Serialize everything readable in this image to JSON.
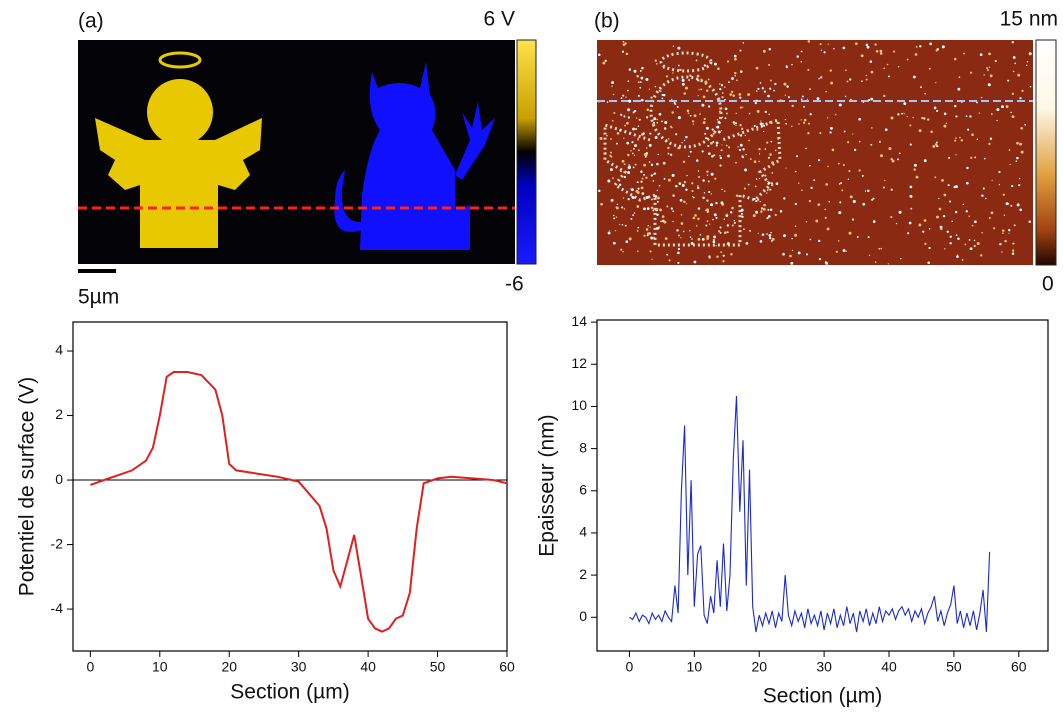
{
  "images": [
    {
      "label": "(a)",
      "colorbar_max": "6 V",
      "colorbar_min": "-6",
      "scalebar": "5µm"
    },
    {
      "label": "(b)",
      "colorbar_max": "15 nm",
      "colorbar_min": "0"
    }
  ],
  "chart_data": [
    {
      "type": "line",
      "xlabel": "Section (µm)",
      "ylabel": "Potentiel de surface (V)",
      "color": "#e02020",
      "xlim": [
        -2.5,
        60
      ],
      "ylim": [
        -5.3,
        4.9
      ],
      "xticks": [
        0,
        10,
        20,
        30,
        40,
        50,
        60
      ],
      "yticks": [
        -4,
        -2,
        0,
        2,
        4
      ],
      "x": [
        0,
        2,
        4,
        6,
        8,
        9,
        10,
        11,
        12,
        14,
        16,
        18,
        19,
        20,
        21,
        24,
        27,
        29,
        30,
        31,
        33,
        34,
        35,
        36,
        37,
        38,
        39,
        40,
        41,
        42,
        43,
        44,
        45,
        46,
        47,
        48,
        50,
        52,
        55,
        58,
        60
      ],
      "values": [
        -0.15,
        0,
        0.15,
        0.3,
        0.6,
        1,
        2,
        3.2,
        3.35,
        3.35,
        3.25,
        2.8,
        2,
        0.5,
        0.3,
        0.2,
        0.1,
        0,
        -0.05,
        -0.3,
        -0.8,
        -1.5,
        -2.8,
        -3.3,
        -2.5,
        -1.7,
        -3,
        -4.3,
        -4.6,
        -4.7,
        -4.6,
        -4.3,
        -4.2,
        -3.5,
        -1.5,
        -0.1,
        0.05,
        0.1,
        0.05,
        0,
        -0.1
      ]
    },
    {
      "type": "line",
      "xlabel": "Section (µm)",
      "ylabel": "Epaisseur (nm)",
      "color": "#1a2ad0",
      "xlim": [
        -5,
        64.5
      ],
      "ylim": [
        -1.6,
        14.1
      ],
      "xticks": [
        0,
        10,
        20,
        30,
        40,
        50,
        60
      ],
      "yticks": [
        0,
        2,
        4,
        6,
        8,
        10,
        12,
        14
      ],
      "x": [
        0,
        0.5,
        1,
        1.5,
        2,
        2.5,
        3,
        3.5,
        4,
        4.5,
        5,
        5.5,
        6,
        6.5,
        7,
        7.5,
        8,
        8.5,
        9,
        9.5,
        10,
        10.5,
        11,
        11.5,
        12,
        12.5,
        13,
        13.5,
        14,
        14.5,
        15,
        15.5,
        16,
        16.5,
        17,
        17.5,
        18,
        18.5,
        19,
        19.5,
        20,
        20.5,
        21,
        21.5,
        22,
        22.5,
        23,
        23.5,
        24,
        24.5,
        25,
        25.5,
        26,
        26.5,
        27,
        27.5,
        28,
        28.5,
        29,
        29.5,
        30,
        30.5,
        31,
        31.5,
        32,
        32.5,
        33,
        33.5,
        34,
        34.5,
        35,
        35.5,
        36,
        36.5,
        37,
        37.5,
        38,
        38.5,
        39,
        39.5,
        40,
        40.5,
        41,
        41.5,
        42,
        42.5,
        43,
        43.5,
        44,
        44.5,
        45,
        45.5,
        46,
        46.5,
        47,
        47.5,
        48,
        48.5,
        49,
        49.5,
        50,
        50.5,
        51,
        51.5,
        52,
        52.5,
        53,
        53.5,
        54,
        54.5,
        55,
        55.5
      ],
      "values": [
        0,
        -0.1,
        0.2,
        -0.2,
        0.1,
        0,
        -0.3,
        0.2,
        -0.1,
        0.1,
        -0.2,
        0.3,
        0,
        -0.2,
        1.5,
        0.2,
        6,
        9.1,
        2,
        6.5,
        0.5,
        3,
        3.4,
        0.1,
        -0.3,
        1,
        0.2,
        2.7,
        0.5,
        3.5,
        0.3,
        2,
        7.5,
        10.5,
        5,
        8.4,
        1.5,
        7,
        0.5,
        -0.7,
        0.1,
        -0.4,
        0.2,
        -0.3,
        0.3,
        -0.5,
        0.2,
        -0.2,
        2,
        0.1,
        -0.4,
        0.3,
        -0.2,
        0.2,
        -0.5,
        0.4,
        -0.3,
        0.1,
        -0.4,
        0.3,
        -0.6,
        0.2,
        -0.3,
        0.4,
        -0.5,
        0.1,
        -0.4,
        0.5,
        -0.3,
        0.2,
        -0.7,
        0.3,
        -0.2,
        0.4,
        -0.4,
        0.2,
        -0.3,
        0.5,
        -0.2,
        0.3,
        0.1,
        0.4,
        -0.1,
        0.3,
        0.5,
        0.1,
        0.4,
        -0.2,
        0.3,
        0,
        0.4,
        -0.3,
        0.2,
        0.5,
        1,
        -0.2,
        0.3,
        -0.4,
        0.2,
        0.6,
        1.5,
        -0.3,
        0.3,
        -0.5,
        0.2,
        -0.4,
        0.3,
        -0.6,
        0.2,
        1.3,
        -0.7,
        3.1
      ]
    }
  ]
}
